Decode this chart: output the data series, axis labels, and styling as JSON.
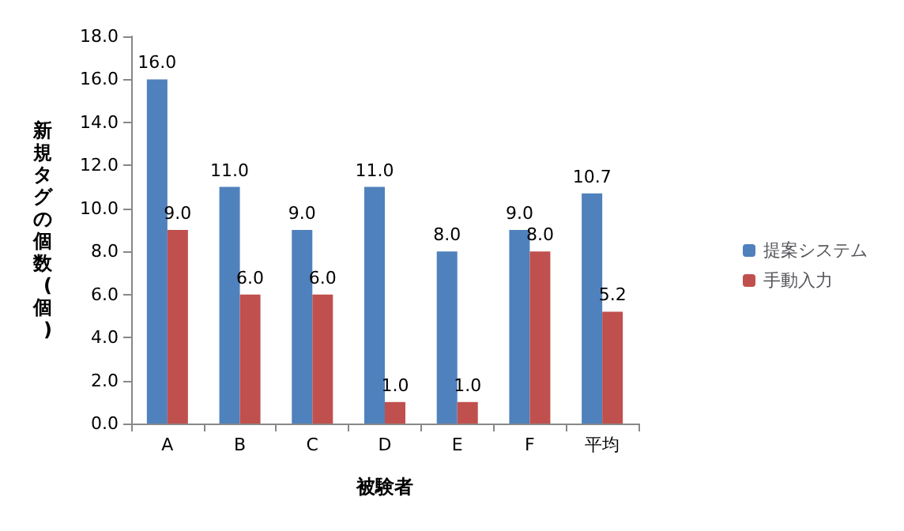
{
  "chart_data": {
    "type": "bar",
    "xlabel": "被験者",
    "ylabel": "新規タグの個数(個)",
    "categories": [
      "A",
      "B",
      "C",
      "D",
      "E",
      "F",
      "平均"
    ],
    "series": [
      {
        "name": "提案システム",
        "color": "#4f81bd",
        "values": [
          16,
          11,
          9,
          11,
          8,
          9,
          10.7
        ],
        "value_labels": [
          "16.0",
          "11.0",
          "9.0",
          "11.0",
          "8.0",
          "9.0",
          "10.7"
        ]
      },
      {
        "name": "手動入力",
        "color": "#c0504d",
        "values": [
          9,
          6,
          6,
          1,
          1,
          8,
          5.2
        ],
        "value_labels": [
          "9.0",
          "6.0",
          "6.0",
          "1.0",
          "1.0",
          "8.0",
          "5.2"
        ]
      }
    ],
    "ylim": [
      0,
      18
    ],
    "yticks": [
      {
        "value": 0,
        "label": "0.0"
      },
      {
        "value": 2,
        "label": "2.0"
      },
      {
        "value": 4,
        "label": "4.0"
      },
      {
        "value": 6,
        "label": "6.0"
      },
      {
        "value": 8,
        "label": "8.0"
      },
      {
        "value": 10,
        "label": "10.0"
      },
      {
        "value": 12,
        "label": "12.0"
      },
      {
        "value": 14,
        "label": "14.0"
      },
      {
        "value": 16,
        "label": "16.0"
      },
      {
        "value": 18,
        "label": "18.0"
      }
    ],
    "grid": false,
    "legend": "right"
  }
}
